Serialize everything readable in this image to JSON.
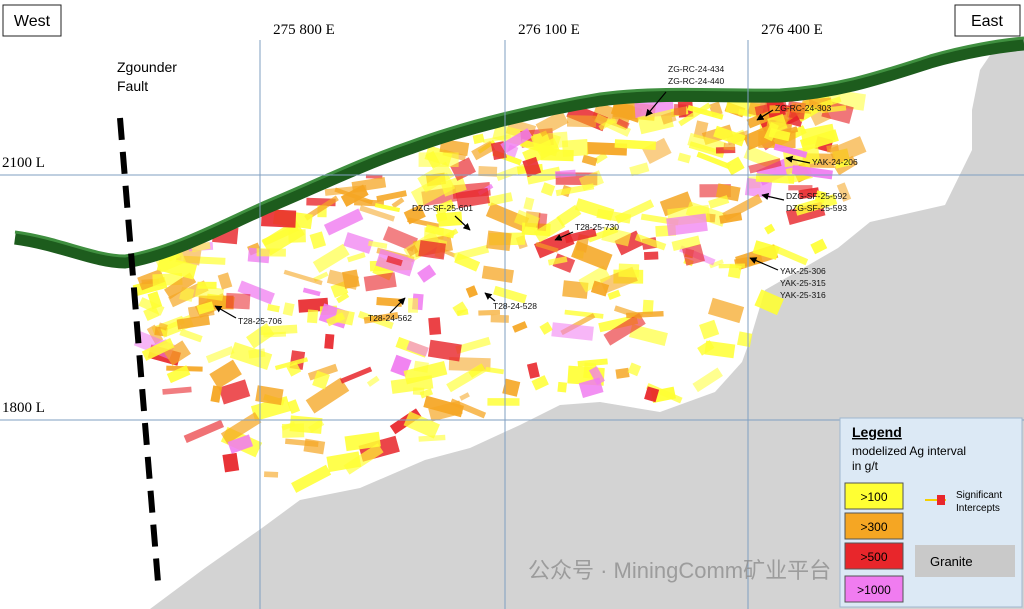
{
  "header": {
    "west": "West",
    "east": "East"
  },
  "grid": {
    "eastings": [
      "275 800 E",
      "276 100 E",
      "276 400 E"
    ],
    "levels": [
      "2100 L",
      "1800 L"
    ]
  },
  "fault": {
    "lines": [
      "Zgounder",
      "Fault"
    ]
  },
  "drill_holes": [
    {
      "lines": [
        "ZG-RC-24-434",
        "ZG-RC-24-440"
      ]
    },
    {
      "lines": [
        "ZG-RC-24-303"
      ]
    },
    {
      "lines": [
        "YAK-24-206"
      ]
    },
    {
      "lines": [
        "DZG-SF-25-592",
        "DZG-SF-25-593"
      ]
    },
    {
      "lines": [
        "DZG-SF-25-601"
      ]
    },
    {
      "lines": [
        "T28-25-730"
      ]
    },
    {
      "lines": [
        "YAK-25-306",
        "YAK-25-315",
        "YAK-25-316"
      ]
    },
    {
      "lines": [
        "T28-25-706"
      ]
    },
    {
      "lines": [
        "T28-24-562"
      ]
    },
    {
      "lines": [
        "T28-24-528"
      ]
    }
  ],
  "legend": {
    "title": "Legend",
    "subtitle": [
      "modelized Ag interval",
      "in g/t"
    ],
    "classes": [
      {
        "label": ">100",
        "color": "#ffff33"
      },
      {
        "label": ">300",
        "color": "#f5a623"
      },
      {
        "label": ">500",
        "color": "#e8262b"
      },
      {
        "label": ">1000",
        "color": "#f07cf0"
      }
    ],
    "intercepts": [
      "Significant",
      "Intercepts"
    ],
    "granite": "Granite"
  },
  "watermark": "公众号 · MiningComm矿业平台"
}
